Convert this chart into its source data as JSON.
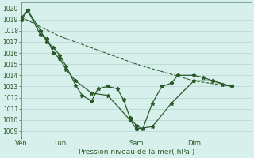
{
  "background_color": "#d8f0ec",
  "grid_color": "#a8ccc8",
  "line_color": "#2a5a2a",
  "xlabel": "Pression niveau de la mer( hPa )",
  "ylim": [
    1008.5,
    1020.5
  ],
  "yticks": [
    1009,
    1010,
    1011,
    1012,
    1013,
    1014,
    1015,
    1016,
    1017,
    1018,
    1019,
    1020
  ],
  "xtick_labels": [
    "Ven",
    "Lun",
    "Sam",
    "Dim"
  ],
  "xtick_positions": [
    0,
    24,
    72,
    108
  ],
  "vline_positions": [
    0,
    24,
    72,
    108
  ],
  "xlim": [
    0,
    144
  ],
  "series1_x": [
    0,
    4,
    12,
    16,
    20,
    24,
    28,
    34,
    38,
    44,
    48,
    54,
    60,
    64,
    68,
    72,
    76,
    82,
    88,
    94,
    98,
    108,
    114,
    120,
    126,
    132
  ],
  "series1_y": [
    1019.2,
    1019.8,
    1018.0,
    1017.0,
    1016.5,
    1015.8,
    1014.8,
    1013.1,
    1012.2,
    1011.7,
    1012.8,
    1013.0,
    1012.8,
    1011.8,
    1010.2,
    1009.5,
    1009.2,
    1011.5,
    1013.0,
    1013.3,
    1014.0,
    1014.0,
    1013.8,
    1013.5,
    1013.2,
    1013.0
  ],
  "series2_x": [
    0,
    4,
    12,
    16,
    20,
    24,
    28,
    34,
    44,
    54,
    68,
    72,
    82,
    94,
    108,
    120,
    132
  ],
  "series2_y": [
    1019.0,
    1019.8,
    1017.6,
    1017.3,
    1016.0,
    1015.5,
    1014.5,
    1013.5,
    1012.4,
    1012.2,
    1010.0,
    1009.2,
    1009.4,
    1011.5,
    1013.5,
    1013.5,
    1013.0
  ],
  "series3_x": [
    0,
    24,
    72,
    108,
    132
  ],
  "series3_y": [
    1019.2,
    1017.5,
    1015.0,
    1013.5,
    1013.0
  ]
}
